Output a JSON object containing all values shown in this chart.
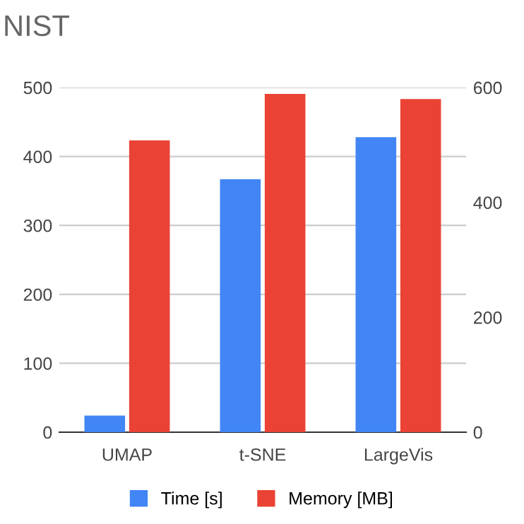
{
  "chart_data": {
    "type": "bar",
    "title": "NIST",
    "categories": [
      "UMAP",
      "t-SNE",
      "LargeVis"
    ],
    "series": [
      {
        "name": "Time [s]",
        "color": "#4285f4",
        "values": [
          24,
          367,
          428
        ]
      },
      {
        "name": "Memory [MB]",
        "color": "#ea4335",
        "values": [
          508,
          589,
          580
        ],
        "axis": "y2"
      }
    ],
    "ylim": [
      0,
      500
    ],
    "yticks": [
      0,
      100,
      200,
      300,
      400,
      500
    ],
    "y2lim": [
      0,
      600
    ],
    "y2ticks": [
      0,
      200,
      400,
      600
    ],
    "grid": "y",
    "legend": "bottom"
  }
}
